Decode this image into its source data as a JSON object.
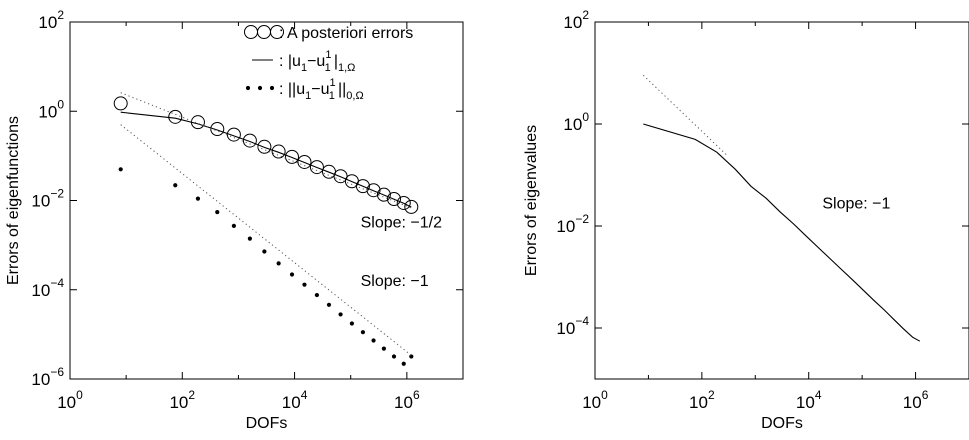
{
  "chart_data": [
    {
      "type": "line",
      "xlabel": "DOFs",
      "ylabel": "Errors of eigenfunctions",
      "xscale": "log",
      "yscale": "log",
      "xlim": [
        1,
        10000000
      ],
      "ylim": [
        1e-06,
        100
      ],
      "xticks": [
        {
          "value": 1,
          "base": "10",
          "exp": "0"
        },
        {
          "value": 100,
          "base": "10",
          "exp": "2"
        },
        {
          "value": 10000,
          "base": "10",
          "exp": "4"
        },
        {
          "value": 1000000,
          "base": "10",
          "exp": "6"
        }
      ],
      "yticks": [
        {
          "value": 1e-06,
          "base": "10",
          "exp": "−6"
        },
        {
          "value": 0.0001,
          "base": "10",
          "exp": "−4"
        },
        {
          "value": 0.01,
          "base": "10",
          "exp": "−2"
        },
        {
          "value": 1,
          "base": "10",
          "exp": "0"
        },
        {
          "value": 100,
          "base": "10",
          "exp": "2"
        }
      ],
      "grid": false,
      "legend_position": "top-right",
      "legend": [
        {
          "marker": "circles",
          "text": ": A posteriori errors"
        },
        {
          "marker": "line",
          "text": ": |u",
          "sub1": "1",
          "mid": "−u",
          "sup": "1",
          "sub2": "1",
          "tail": "|",
          "sub3": "1,Ω"
        },
        {
          "marker": "dots",
          "text": ": ||u",
          "sub1": "1",
          "mid": "−u",
          "sup": "1",
          "sub2": "1",
          "tail": "||",
          "sub3": "0,Ω"
        }
      ],
      "annotations": [
        {
          "text": "Slope: −1/2",
          "x": 150000,
          "y": 0.0025
        },
        {
          "text": "Slope: −1",
          "x": 150000,
          "y": 0.00012
        }
      ],
      "series": [
        {
          "style": "circles",
          "x": [
            8,
            75,
            190,
            420,
            830,
            1600,
            2900,
            5200,
            9000,
            15000,
            25000,
            41000,
            66000,
            105000,
            165000,
            255000,
            390000,
            590000,
            880000,
            1200000
          ],
          "y": [
            1.5,
            0.75,
            0.57,
            0.4,
            0.3,
            0.22,
            0.16,
            0.125,
            0.095,
            0.073,
            0.056,
            0.044,
            0.035,
            0.027,
            0.021,
            0.017,
            0.0135,
            0.0108,
            0.0088,
            0.0072
          ]
        },
        {
          "style": "line",
          "x": [
            8,
            75,
            190,
            420,
            830,
            1600,
            2900,
            5200,
            9000,
            15000,
            25000,
            41000,
            66000,
            105000,
            165000,
            255000,
            390000,
            590000,
            880000,
            1200000
          ],
          "y": [
            0.95,
            0.7,
            0.52,
            0.38,
            0.28,
            0.21,
            0.155,
            0.12,
            0.092,
            0.071,
            0.055,
            0.043,
            0.034,
            0.0265,
            0.0208,
            0.0166,
            0.0133,
            0.0107,
            0.0087,
            0.0071
          ]
        },
        {
          "style": "dots",
          "x": [
            8,
            75,
            190,
            420,
            830,
            1600,
            2900,
            5200,
            9000,
            15000,
            25000,
            41000,
            66000,
            105000,
            165000,
            255000,
            390000,
            590000,
            880000,
            1200000
          ],
          "y": [
            0.05,
            0.022,
            0.011,
            0.0055,
            0.0027,
            0.0014,
            0.00072,
            0.00039,
            0.00022,
            0.00013,
            7.6e-05,
            4.6e-05,
            2.8e-05,
            1.75e-05,
            1.12e-05,
            7.3e-06,
            4.8e-06,
            3.2e-06,
            2.2e-06,
            3.2e-06
          ]
        },
        {
          "style": "dotted-reference",
          "x": [
            8,
            1200000
          ],
          "y": [
            2.6,
            0.0068
          ]
        },
        {
          "style": "dotted-reference",
          "x": [
            8,
            1200000
          ],
          "y": [
            0.5,
            3.4e-06
          ]
        }
      ]
    },
    {
      "type": "line",
      "xlabel": "DOFs",
      "ylabel": "Errors of eigenvalues",
      "xscale": "log",
      "yscale": "log",
      "xlim": [
        1,
        10000000
      ],
      "ylim": [
        1e-05,
        100
      ],
      "xticks": [
        {
          "value": 1,
          "base": "10",
          "exp": "0"
        },
        {
          "value": 100,
          "base": "10",
          "exp": "2"
        },
        {
          "value": 10000,
          "base": "10",
          "exp": "4"
        },
        {
          "value": 1000000,
          "base": "10",
          "exp": "6"
        }
      ],
      "yticks": [
        {
          "value": 0.0001,
          "base": "10",
          "exp": "−4"
        },
        {
          "value": 0.01,
          "base": "10",
          "exp": "−2"
        },
        {
          "value": 1,
          "base": "10",
          "exp": "0"
        },
        {
          "value": 100,
          "base": "10",
          "exp": "2"
        }
      ],
      "grid": false,
      "annotations": [
        {
          "text": "Slope: −1",
          "x": 18000,
          "y": 0.022
        }
      ],
      "series": [
        {
          "style": "line",
          "x": [
            8,
            75,
            190,
            420,
            830,
            1600,
            2900,
            5200,
            9000,
            15000,
            25000,
            41000,
            66000,
            105000,
            165000,
            255000,
            390000,
            590000,
            880000,
            1200000
          ],
          "y": [
            1.0,
            0.5,
            0.28,
            0.13,
            0.06,
            0.035,
            0.019,
            0.011,
            0.0063,
            0.0038,
            0.0023,
            0.0014,
            0.00088,
            0.00055,
            0.00035,
            0.00023,
            0.000148,
            9.7e-05,
            6.6e-05,
            5.5e-05
          ]
        },
        {
          "style": "dotted-reference",
          "x": [
            8,
            300
          ],
          "y": [
            9.0,
            0.24
          ]
        }
      ]
    }
  ]
}
